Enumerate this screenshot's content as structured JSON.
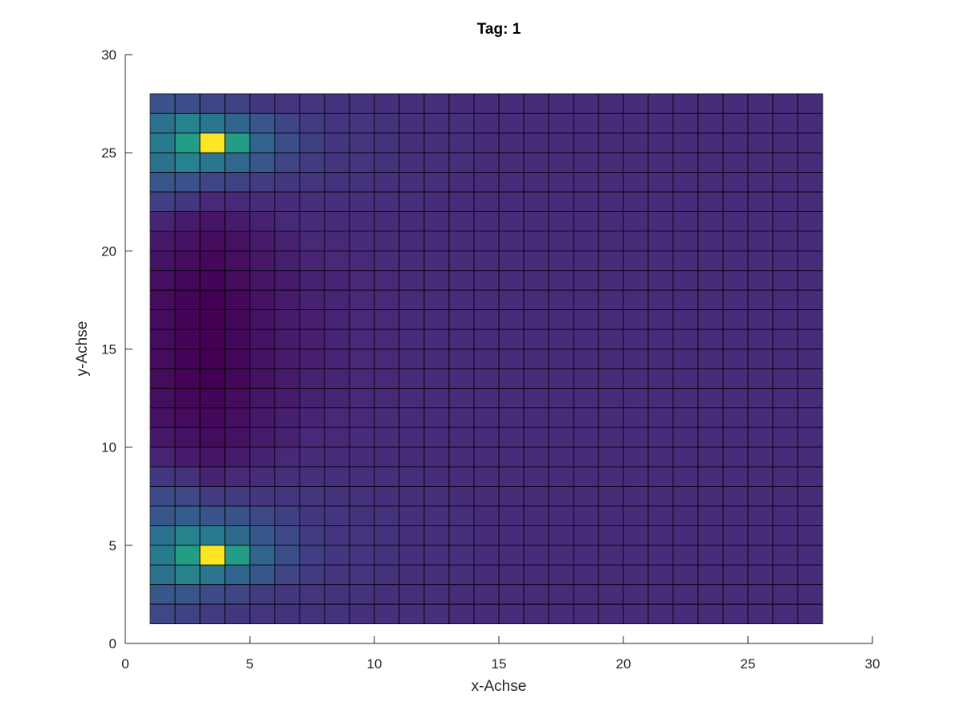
{
  "chart_data": {
    "type": "heatmap",
    "title": "Tag: 1",
    "xlabel": "x-Achse",
    "ylabel": "y-Achse",
    "xlim": [
      0,
      30
    ],
    "ylim": [
      0,
      30
    ],
    "xticks": [
      "0",
      "5",
      "10",
      "15",
      "20",
      "25",
      "30"
    ],
    "yticks": [
      "0",
      "5",
      "10",
      "15",
      "20",
      "25",
      "30"
    ],
    "grid": false,
    "colormap": "viridis",
    "cell_edge_color": "#000000",
    "surface_extent": {
      "x": [
        1,
        28
      ],
      "y": [
        1,
        28
      ]
    },
    "value_rows_top_to_bottom": [
      [
        0.26,
        0.24,
        0.21,
        0.2,
        0.17,
        0.16,
        0.16,
        0.15,
        0.15,
        0.14,
        0.14,
        0.14,
        0.13,
        0.13,
        0.13,
        0.13,
        0.13,
        0.13,
        0.13,
        0.13,
        0.13,
        0.13,
        0.13,
        0.13,
        0.13,
        0.13,
        0.13
      ],
      [
        0.38,
        0.45,
        0.4,
        0.33,
        0.27,
        0.21,
        0.18,
        0.16,
        0.16,
        0.15,
        0.14,
        0.14,
        0.14,
        0.13,
        0.13,
        0.13,
        0.13,
        0.13,
        0.13,
        0.13,
        0.13,
        0.13,
        0.13,
        0.13,
        0.13,
        0.13,
        0.13
      ],
      [
        0.42,
        0.56,
        1.0,
        0.56,
        0.33,
        0.24,
        0.19,
        0.17,
        0.16,
        0.15,
        0.14,
        0.14,
        0.14,
        0.13,
        0.13,
        0.13,
        0.13,
        0.13,
        0.13,
        0.13,
        0.13,
        0.13,
        0.13,
        0.13,
        0.13,
        0.13,
        0.13
      ],
      [
        0.38,
        0.44,
        0.4,
        0.34,
        0.27,
        0.21,
        0.18,
        0.16,
        0.16,
        0.15,
        0.14,
        0.14,
        0.14,
        0.13,
        0.13,
        0.13,
        0.13,
        0.13,
        0.13,
        0.13,
        0.13,
        0.13,
        0.13,
        0.13,
        0.13,
        0.13,
        0.13
      ],
      [
        0.27,
        0.25,
        0.21,
        0.2,
        0.18,
        0.17,
        0.16,
        0.15,
        0.15,
        0.14,
        0.14,
        0.14,
        0.13,
        0.13,
        0.13,
        0.13,
        0.13,
        0.13,
        0.13,
        0.13,
        0.13,
        0.13,
        0.13,
        0.13,
        0.13,
        0.13,
        0.13
      ],
      [
        0.19,
        0.17,
        0.12,
        0.12,
        0.13,
        0.13,
        0.14,
        0.14,
        0.14,
        0.14,
        0.14,
        0.13,
        0.13,
        0.13,
        0.13,
        0.13,
        0.13,
        0.13,
        0.13,
        0.13,
        0.13,
        0.13,
        0.13,
        0.13,
        0.13,
        0.13,
        0.13
      ],
      [
        0.11,
        0.08,
        0.06,
        0.08,
        0.1,
        0.12,
        0.13,
        0.13,
        0.13,
        0.13,
        0.13,
        0.13,
        0.13,
        0.13,
        0.13,
        0.13,
        0.13,
        0.13,
        0.13,
        0.13,
        0.13,
        0.13,
        0.13,
        0.13,
        0.13,
        0.13,
        0.13
      ],
      [
        0.07,
        0.05,
        0.03,
        0.05,
        0.08,
        0.1,
        0.12,
        0.12,
        0.13,
        0.13,
        0.13,
        0.13,
        0.13,
        0.13,
        0.13,
        0.13,
        0.13,
        0.13,
        0.13,
        0.13,
        0.13,
        0.13,
        0.13,
        0.13,
        0.13,
        0.13,
        0.13
      ],
      [
        0.05,
        0.03,
        0.02,
        0.04,
        0.07,
        0.09,
        0.11,
        0.12,
        0.12,
        0.13,
        0.13,
        0.13,
        0.13,
        0.13,
        0.13,
        0.13,
        0.13,
        0.13,
        0.13,
        0.13,
        0.13,
        0.13,
        0.13,
        0.13,
        0.13,
        0.13,
        0.13
      ],
      [
        0.04,
        0.02,
        0.01,
        0.03,
        0.06,
        0.08,
        0.1,
        0.11,
        0.12,
        0.12,
        0.13,
        0.13,
        0.13,
        0.13,
        0.13,
        0.13,
        0.13,
        0.13,
        0.13,
        0.13,
        0.13,
        0.13,
        0.13,
        0.13,
        0.13,
        0.13,
        0.13
      ],
      [
        0.03,
        0.01,
        0.0,
        0.02,
        0.05,
        0.08,
        0.1,
        0.11,
        0.12,
        0.12,
        0.13,
        0.13,
        0.13,
        0.13,
        0.13,
        0.13,
        0.13,
        0.13,
        0.13,
        0.13,
        0.13,
        0.13,
        0.13,
        0.13,
        0.13,
        0.13,
        0.13
      ],
      [
        0.03,
        0.01,
        0.0,
        0.02,
        0.05,
        0.08,
        0.09,
        0.11,
        0.12,
        0.12,
        0.13,
        0.13,
        0.13,
        0.13,
        0.13,
        0.13,
        0.13,
        0.13,
        0.13,
        0.13,
        0.13,
        0.13,
        0.13,
        0.13,
        0.13,
        0.13,
        0.13
      ],
      [
        0.03,
        0.01,
        0.0,
        0.02,
        0.05,
        0.08,
        0.09,
        0.11,
        0.12,
        0.12,
        0.13,
        0.13,
        0.13,
        0.13,
        0.13,
        0.13,
        0.13,
        0.13,
        0.13,
        0.13,
        0.13,
        0.13,
        0.13,
        0.13,
        0.13,
        0.13,
        0.13
      ],
      [
        0.03,
        0.01,
        0.0,
        0.02,
        0.05,
        0.08,
        0.09,
        0.11,
        0.12,
        0.12,
        0.13,
        0.13,
        0.13,
        0.13,
        0.13,
        0.13,
        0.13,
        0.13,
        0.13,
        0.13,
        0.13,
        0.13,
        0.13,
        0.13,
        0.13,
        0.13,
        0.13
      ],
      [
        0.03,
        0.01,
        0.0,
        0.02,
        0.05,
        0.08,
        0.1,
        0.11,
        0.12,
        0.12,
        0.13,
        0.13,
        0.13,
        0.13,
        0.13,
        0.13,
        0.13,
        0.13,
        0.13,
        0.13,
        0.13,
        0.13,
        0.13,
        0.13,
        0.13,
        0.13,
        0.13
      ],
      [
        0.04,
        0.02,
        0.01,
        0.03,
        0.06,
        0.08,
        0.1,
        0.11,
        0.12,
        0.12,
        0.13,
        0.13,
        0.13,
        0.13,
        0.13,
        0.13,
        0.13,
        0.13,
        0.13,
        0.13,
        0.13,
        0.13,
        0.13,
        0.13,
        0.13,
        0.13,
        0.13
      ],
      [
        0.05,
        0.03,
        0.02,
        0.04,
        0.07,
        0.09,
        0.11,
        0.12,
        0.12,
        0.13,
        0.13,
        0.13,
        0.13,
        0.13,
        0.13,
        0.13,
        0.13,
        0.13,
        0.13,
        0.13,
        0.13,
        0.13,
        0.13,
        0.13,
        0.13,
        0.13,
        0.13
      ],
      [
        0.07,
        0.05,
        0.03,
        0.05,
        0.08,
        0.1,
        0.12,
        0.12,
        0.13,
        0.13,
        0.13,
        0.13,
        0.13,
        0.13,
        0.13,
        0.13,
        0.13,
        0.13,
        0.13,
        0.13,
        0.13,
        0.13,
        0.13,
        0.13,
        0.13,
        0.13,
        0.13
      ],
      [
        0.11,
        0.08,
        0.06,
        0.08,
        0.1,
        0.12,
        0.13,
        0.13,
        0.13,
        0.13,
        0.13,
        0.13,
        0.13,
        0.13,
        0.13,
        0.13,
        0.13,
        0.13,
        0.13,
        0.13,
        0.13,
        0.13,
        0.13,
        0.13,
        0.13,
        0.13,
        0.13
      ],
      [
        0.17,
        0.15,
        0.1,
        0.12,
        0.13,
        0.14,
        0.14,
        0.14,
        0.14,
        0.14,
        0.14,
        0.13,
        0.13,
        0.13,
        0.13,
        0.13,
        0.13,
        0.13,
        0.13,
        0.13,
        0.13,
        0.13,
        0.13,
        0.13,
        0.13,
        0.13,
        0.13
      ],
      [
        0.23,
        0.22,
        0.18,
        0.18,
        0.17,
        0.16,
        0.16,
        0.15,
        0.15,
        0.14,
        0.14,
        0.14,
        0.13,
        0.13,
        0.13,
        0.13,
        0.13,
        0.13,
        0.13,
        0.13,
        0.13,
        0.13,
        0.13,
        0.13,
        0.13,
        0.13,
        0.13
      ],
      [
        0.27,
        0.3,
        0.26,
        0.25,
        0.22,
        0.19,
        0.17,
        0.16,
        0.15,
        0.15,
        0.14,
        0.14,
        0.14,
        0.13,
        0.13,
        0.13,
        0.13,
        0.13,
        0.13,
        0.13,
        0.13,
        0.13,
        0.13,
        0.13,
        0.13,
        0.13,
        0.13
      ],
      [
        0.38,
        0.45,
        0.42,
        0.35,
        0.28,
        0.22,
        0.18,
        0.16,
        0.16,
        0.15,
        0.14,
        0.14,
        0.14,
        0.13,
        0.13,
        0.13,
        0.13,
        0.13,
        0.13,
        0.13,
        0.13,
        0.13,
        0.13,
        0.13,
        0.13,
        0.13,
        0.13
      ],
      [
        0.42,
        0.56,
        1.0,
        0.56,
        0.33,
        0.24,
        0.19,
        0.17,
        0.16,
        0.15,
        0.14,
        0.14,
        0.14,
        0.13,
        0.13,
        0.13,
        0.13,
        0.13,
        0.13,
        0.13,
        0.13,
        0.13,
        0.13,
        0.13,
        0.13,
        0.13,
        0.13
      ],
      [
        0.38,
        0.45,
        0.4,
        0.33,
        0.27,
        0.21,
        0.18,
        0.16,
        0.16,
        0.15,
        0.14,
        0.14,
        0.14,
        0.13,
        0.13,
        0.13,
        0.13,
        0.13,
        0.13,
        0.13,
        0.13,
        0.13,
        0.13,
        0.13,
        0.13,
        0.13,
        0.13
      ],
      [
        0.28,
        0.27,
        0.23,
        0.21,
        0.18,
        0.17,
        0.16,
        0.15,
        0.15,
        0.14,
        0.14,
        0.14,
        0.13,
        0.13,
        0.13,
        0.13,
        0.13,
        0.13,
        0.13,
        0.13,
        0.13,
        0.13,
        0.13,
        0.13,
        0.13,
        0.13,
        0.13
      ],
      [
        0.22,
        0.2,
        0.18,
        0.17,
        0.16,
        0.15,
        0.15,
        0.15,
        0.14,
        0.14,
        0.14,
        0.14,
        0.13,
        0.13,
        0.13,
        0.13,
        0.13,
        0.13,
        0.13,
        0.13,
        0.13,
        0.13,
        0.13,
        0.13,
        0.13,
        0.13,
        0.13
      ]
    ]
  }
}
